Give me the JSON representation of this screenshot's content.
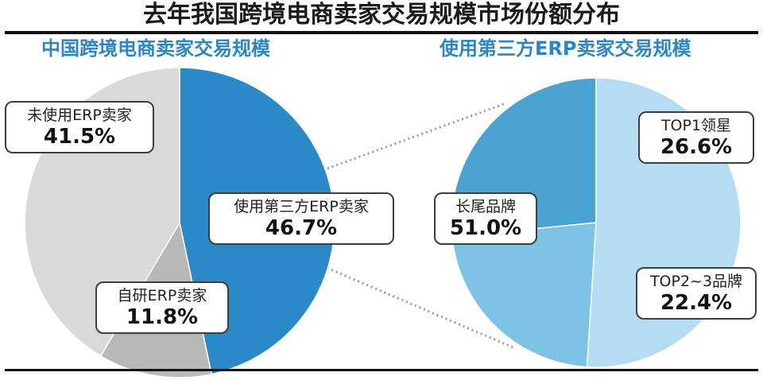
{
  "title": "去年我国跨境电商卖家交易规模市场份额分布",
  "chart_data": [
    {
      "type": "pie",
      "title": "中国跨境电商卖家交易规模",
      "slices": [
        {
          "label": "使用第三方ERP卖家",
          "value": 46.7,
          "display": "46.7%",
          "color": "#2a8ac7"
        },
        {
          "label": "自研ERP卖家",
          "value": 11.8,
          "display": "11.8%",
          "color": "#b8b8b8"
        },
        {
          "label": "未使用ERP卖家",
          "value": 41.5,
          "display": "41.5%",
          "color": "#d9d9d9"
        }
      ]
    },
    {
      "type": "pie",
      "title": "使用第三方ERP卖家交易规模",
      "slices": [
        {
          "label": "TOP1领星",
          "value": 26.6,
          "display": "26.6%",
          "color": "#4aa3d1"
        },
        {
          "label": "TOP2~3品牌",
          "value": 22.4,
          "display": "22.4%",
          "color": "#7cc3e5"
        },
        {
          "label": "长尾品牌",
          "value": 51.0,
          "display": "51.0%",
          "color": "#b4ddf3"
        }
      ]
    }
  ]
}
